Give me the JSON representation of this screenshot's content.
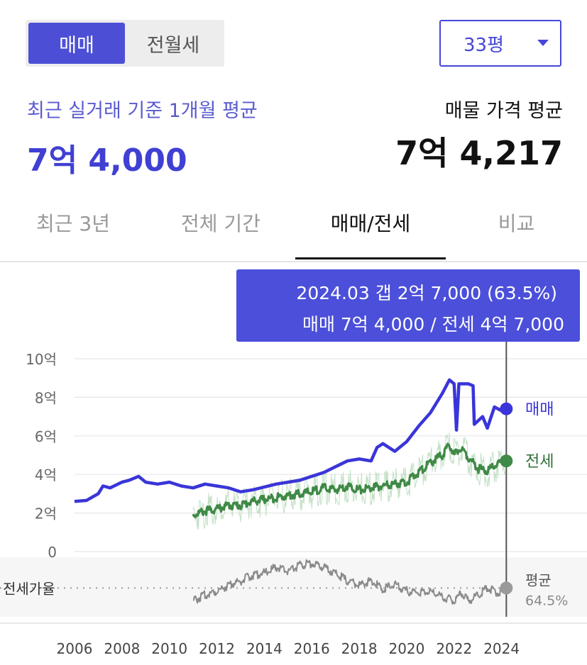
{
  "header": {
    "trade_types": [
      {
        "label": "매매",
        "active": true
      },
      {
        "label": "전월세",
        "active": false
      }
    ],
    "size_select": {
      "value": "33평",
      "icon": "caret-down-icon"
    }
  },
  "summary": {
    "recent_label": "최근 실거래 기준 1개월 평균",
    "recent_value": "7억 4,000",
    "listing_label": "매물 가격 평균",
    "listing_value": "7억 4,217"
  },
  "tabs": [
    {
      "label": "최근 3년",
      "active": false
    },
    {
      "label": "전체 기간",
      "active": false
    },
    {
      "label": "매매/전세",
      "active": true
    },
    {
      "label": "비교",
      "active": false
    }
  ],
  "tooltip": {
    "line1": "2024.03  갭 2억 7,000 (63.5%)",
    "line2": "매매 7억 4,000 / 전세 4억 7,000"
  },
  "colors": {
    "accent": "#4b4fd9",
    "trade_line": "#3a35d8",
    "jeonse_line": "#3f8a46",
    "ratio_line": "#8a8a8a"
  },
  "chart_data": {
    "type": "line",
    "x_ticks": [
      "2006",
      "2008",
      "2010",
      "2012",
      "2014",
      "2016",
      "2018",
      "2020",
      "2022",
      "2024"
    ],
    "y_ticks": [
      "10억",
      "8억",
      "6억",
      "4억",
      "2억",
      "0"
    ],
    "ylim": [
      0,
      10
    ],
    "xlim": [
      2006.0,
      2024.25
    ],
    "grid": true,
    "cursor_x": 2024.2,
    "series": [
      {
        "name": "매매",
        "color": "#3a35d8",
        "end_label": "매매",
        "points": [
          [
            2006.0,
            2.6
          ],
          [
            2006.5,
            2.65
          ],
          [
            2007.0,
            3.0
          ],
          [
            2007.2,
            3.4
          ],
          [
            2007.5,
            3.3
          ],
          [
            2008.0,
            3.6
          ],
          [
            2008.3,
            3.7
          ],
          [
            2008.7,
            3.9
          ],
          [
            2009.0,
            3.6
          ],
          [
            2009.5,
            3.5
          ],
          [
            2010.0,
            3.6
          ],
          [
            2010.5,
            3.4
          ],
          [
            2011.0,
            3.3
          ],
          [
            2011.5,
            3.5
          ],
          [
            2012.0,
            3.4
          ],
          [
            2012.5,
            3.3
          ],
          [
            2013.0,
            3.1
          ],
          [
            2013.5,
            3.2
          ],
          [
            2014.0,
            3.35
          ],
          [
            2014.5,
            3.5
          ],
          [
            2015.0,
            3.6
          ],
          [
            2015.5,
            3.7
          ],
          [
            2016.0,
            3.9
          ],
          [
            2016.5,
            4.1
          ],
          [
            2017.0,
            4.4
          ],
          [
            2017.5,
            4.7
          ],
          [
            2018.0,
            4.8
          ],
          [
            2018.5,
            4.7
          ],
          [
            2018.75,
            5.4
          ],
          [
            2019.0,
            5.6
          ],
          [
            2019.5,
            5.2
          ],
          [
            2020.0,
            5.7
          ],
          [
            2020.5,
            6.5
          ],
          [
            2021.0,
            7.2
          ],
          [
            2021.5,
            8.2
          ],
          [
            2021.8,
            8.9
          ],
          [
            2022.0,
            8.7
          ],
          [
            2022.1,
            6.3
          ],
          [
            2022.2,
            8.7
          ],
          [
            2022.6,
            8.7
          ],
          [
            2022.8,
            8.6
          ],
          [
            2022.85,
            6.6
          ],
          [
            2023.2,
            7.0
          ],
          [
            2023.4,
            6.4
          ],
          [
            2023.7,
            7.5
          ],
          [
            2024.0,
            7.3
          ],
          [
            2024.2,
            7.4
          ]
        ]
      },
      {
        "name": "전세",
        "color": "#3f8a46",
        "end_label": "전세",
        "points": [
          [
            2011.0,
            1.9
          ],
          [
            2011.5,
            2.1
          ],
          [
            2012.0,
            2.2
          ],
          [
            2012.5,
            2.4
          ],
          [
            2013.0,
            2.4
          ],
          [
            2013.5,
            2.6
          ],
          [
            2014.0,
            2.7
          ],
          [
            2014.5,
            2.8
          ],
          [
            2015.0,
            2.9
          ],
          [
            2015.5,
            3.0
          ],
          [
            2016.0,
            3.1
          ],
          [
            2016.5,
            3.3
          ],
          [
            2017.0,
            3.2
          ],
          [
            2017.5,
            3.4
          ],
          [
            2018.0,
            3.2
          ],
          [
            2018.5,
            3.3
          ],
          [
            2019.0,
            3.4
          ],
          [
            2019.5,
            3.5
          ],
          [
            2020.0,
            3.6
          ],
          [
            2020.5,
            4.1
          ],
          [
            2021.0,
            4.6
          ],
          [
            2021.5,
            5.0
          ],
          [
            2021.8,
            5.5
          ],
          [
            2022.0,
            5.0
          ],
          [
            2022.3,
            5.4
          ],
          [
            2022.6,
            4.9
          ],
          [
            2023.0,
            4.3
          ],
          [
            2023.4,
            4.2
          ],
          [
            2023.8,
            4.5
          ],
          [
            2024.2,
            4.7
          ]
        ]
      },
      {
        "name": "평균",
        "color": "#8a8a8a",
        "end_label": "평균",
        "end_value": "64.5%",
        "points": [
          [
            2011.0,
            58
          ],
          [
            2011.5,
            61
          ],
          [
            2012.0,
            63
          ],
          [
            2012.5,
            66
          ],
          [
            2013.0,
            68
          ],
          [
            2013.5,
            71
          ],
          [
            2014.0,
            72
          ],
          [
            2014.5,
            75
          ],
          [
            2015.0,
            73
          ],
          [
            2015.5,
            76
          ],
          [
            2016.0,
            77
          ],
          [
            2016.5,
            75
          ],
          [
            2017.0,
            72
          ],
          [
            2017.5,
            68
          ],
          [
            2018.0,
            66
          ],
          [
            2018.5,
            68
          ],
          [
            2019.0,
            64
          ],
          [
            2019.5,
            66
          ],
          [
            2020.0,
            63
          ],
          [
            2020.5,
            62
          ],
          [
            2021.0,
            63
          ],
          [
            2021.5,
            60
          ],
          [
            2022.0,
            58
          ],
          [
            2022.3,
            62
          ],
          [
            2022.6,
            58
          ],
          [
            2023.0,
            61
          ],
          [
            2023.4,
            65
          ],
          [
            2023.8,
            62
          ],
          [
            2024.2,
            64.5
          ]
        ]
      }
    ],
    "ratio_panel": {
      "label": "전세가율",
      "average": 64.5,
      "ylim": [
        50,
        80
      ]
    }
  }
}
